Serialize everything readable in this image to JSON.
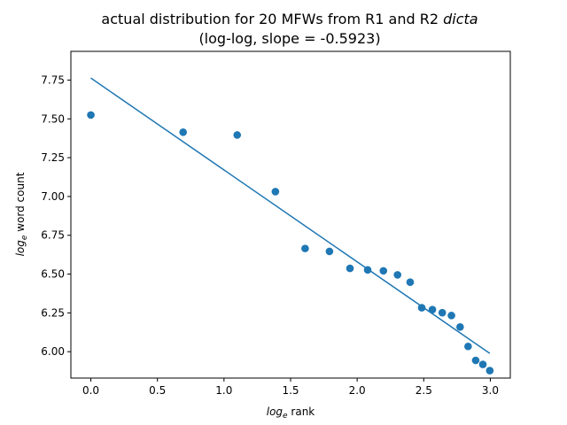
{
  "chart_data": {
    "type": "scatter",
    "title_line1": "actual distribution for 20 MFWs from R1 and R2 ",
    "title_italic": "dicta",
    "title_line2": "(log-log, slope = -0.5923)",
    "xlabel_base": "log",
    "xlabel_sub": "e",
    "xlabel_rest": " rank",
    "ylabel_base": "log",
    "ylabel_sub": "e",
    "ylabel_rest": " word count",
    "xlim": [
      -0.15,
      3.15
    ],
    "ylim": [
      5.83,
      7.935
    ],
    "xticks": [
      0.0,
      0.5,
      1.0,
      1.5,
      2.0,
      2.5,
      3.0
    ],
    "xtick_labels": [
      "0.0",
      "0.5",
      "1.0",
      "1.5",
      "2.0",
      "2.5",
      "3.0"
    ],
    "yticks": [
      6.0,
      6.25,
      6.5,
      6.75,
      7.0,
      7.25,
      7.5,
      7.75
    ],
    "ytick_labels": [
      "6.00",
      "6.25",
      "6.50",
      "6.75",
      "7.00",
      "7.25",
      "7.50",
      "7.75"
    ],
    "color": "#1f77b4",
    "points": [
      {
        "x": 0.0,
        "y": 7.525
      },
      {
        "x": 0.693,
        "y": 7.414
      },
      {
        "x": 1.099,
        "y": 7.396
      },
      {
        "x": 1.386,
        "y": 7.031
      },
      {
        "x": 1.609,
        "y": 6.665
      },
      {
        "x": 1.792,
        "y": 6.646
      },
      {
        "x": 1.946,
        "y": 6.537
      },
      {
        "x": 2.079,
        "y": 6.527
      },
      {
        "x": 2.197,
        "y": 6.521
      },
      {
        "x": 2.303,
        "y": 6.495
      },
      {
        "x": 2.398,
        "y": 6.448
      },
      {
        "x": 2.485,
        "y": 6.283
      },
      {
        "x": 2.565,
        "y": 6.271
      },
      {
        "x": 2.639,
        "y": 6.251
      },
      {
        "x": 2.708,
        "y": 6.233
      },
      {
        "x": 2.773,
        "y": 6.159
      },
      {
        "x": 2.833,
        "y": 6.034
      },
      {
        "x": 2.89,
        "y": 5.944
      },
      {
        "x": 2.944,
        "y": 5.918
      },
      {
        "x": 2.996,
        "y": 5.878
      }
    ],
    "fit_line": [
      {
        "x": 0.0,
        "y": 7.763
      },
      {
        "x": 2.996,
        "y": 5.989
      }
    ]
  }
}
